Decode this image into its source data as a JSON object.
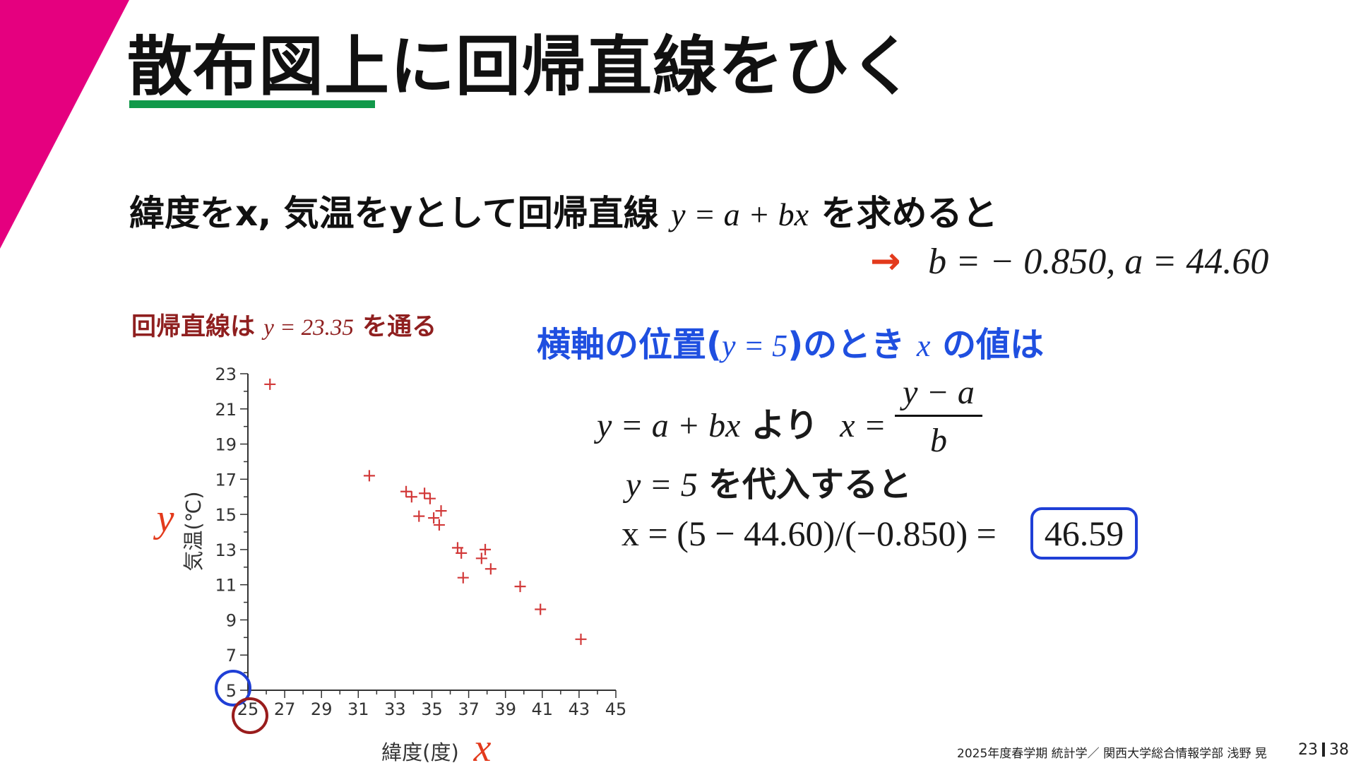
{
  "slide": {
    "title": "散布図上に回帰直線をひく",
    "intro_pre": "緯度をx, 気温をyとして回帰直線",
    "intro_formula": "y = a + bx",
    "intro_post": "を求めると",
    "result_arrow": "→",
    "result_formula": "b = − 0.850,   a = 44.60",
    "regression_note_pre": "回帰直線は",
    "regression_note_formula": "y = 23.35",
    "regression_note_post": "を通る",
    "question_pre": "横軸の位置(",
    "question_formula": "y = 5",
    "question_mid": ")のとき",
    "question_var": "x",
    "question_post": "の値は",
    "eq1_formula": "y = a + bx",
    "eq1_jp": "より",
    "eq1_lhs": "x =",
    "frac_num": "y − a",
    "frac_den": "b",
    "eq2_formula": "y = 5",
    "eq2_jp": "を代入すると",
    "eq3_formula": "x = (5 − 44.60)/(−0.850) =",
    "answer": "46.59",
    "footer": "2025年度春学期  統計学／  関西大学総合情報学部  浅野  晃",
    "page_current": "23",
    "page_total": "38"
  },
  "colors": {
    "magenta_accent": "#e5007f",
    "title_underline": "#11994a",
    "arrow": "#e33a1c",
    "note_red": "#8f1f1f",
    "question_blue": "#1f4fe0",
    "marker_red": "#d23a3a",
    "circle_blue": "#1f3fd6",
    "circle_darkred": "#991c1c"
  },
  "chart_data": {
    "type": "scatter",
    "xlabel": "緯度(度)",
    "ylabel": "気温(℃)",
    "x_symbol": "x",
    "y_symbol": "y",
    "xlim": [
      25,
      45
    ],
    "ylim": [
      5,
      23
    ],
    "x_ticks": [
      25,
      27,
      29,
      31,
      33,
      35,
      37,
      39,
      41,
      43,
      45
    ],
    "y_ticks": [
      5,
      7,
      9,
      11,
      13,
      15,
      17,
      19,
      21,
      23
    ],
    "marker": "+",
    "highlight_x": 25,
    "highlight_y": 5,
    "points": [
      [
        26.2,
        22.4
      ],
      [
        31.6,
        17.2
      ],
      [
        33.6,
        16.3
      ],
      [
        33.9,
        16.0
      ],
      [
        34.6,
        16.2
      ],
      [
        34.9,
        15.9
      ],
      [
        35.5,
        15.2
      ],
      [
        34.3,
        14.9
      ],
      [
        35.1,
        14.8
      ],
      [
        35.4,
        14.4
      ],
      [
        36.4,
        13.1
      ],
      [
        36.6,
        12.8
      ],
      [
        36.7,
        11.4
      ],
      [
        37.9,
        13.0
      ],
      [
        37.7,
        12.5
      ],
      [
        38.2,
        11.9
      ],
      [
        39.8,
        10.9
      ],
      [
        40.9,
        9.6
      ],
      [
        43.1,
        7.9
      ]
    ]
  }
}
